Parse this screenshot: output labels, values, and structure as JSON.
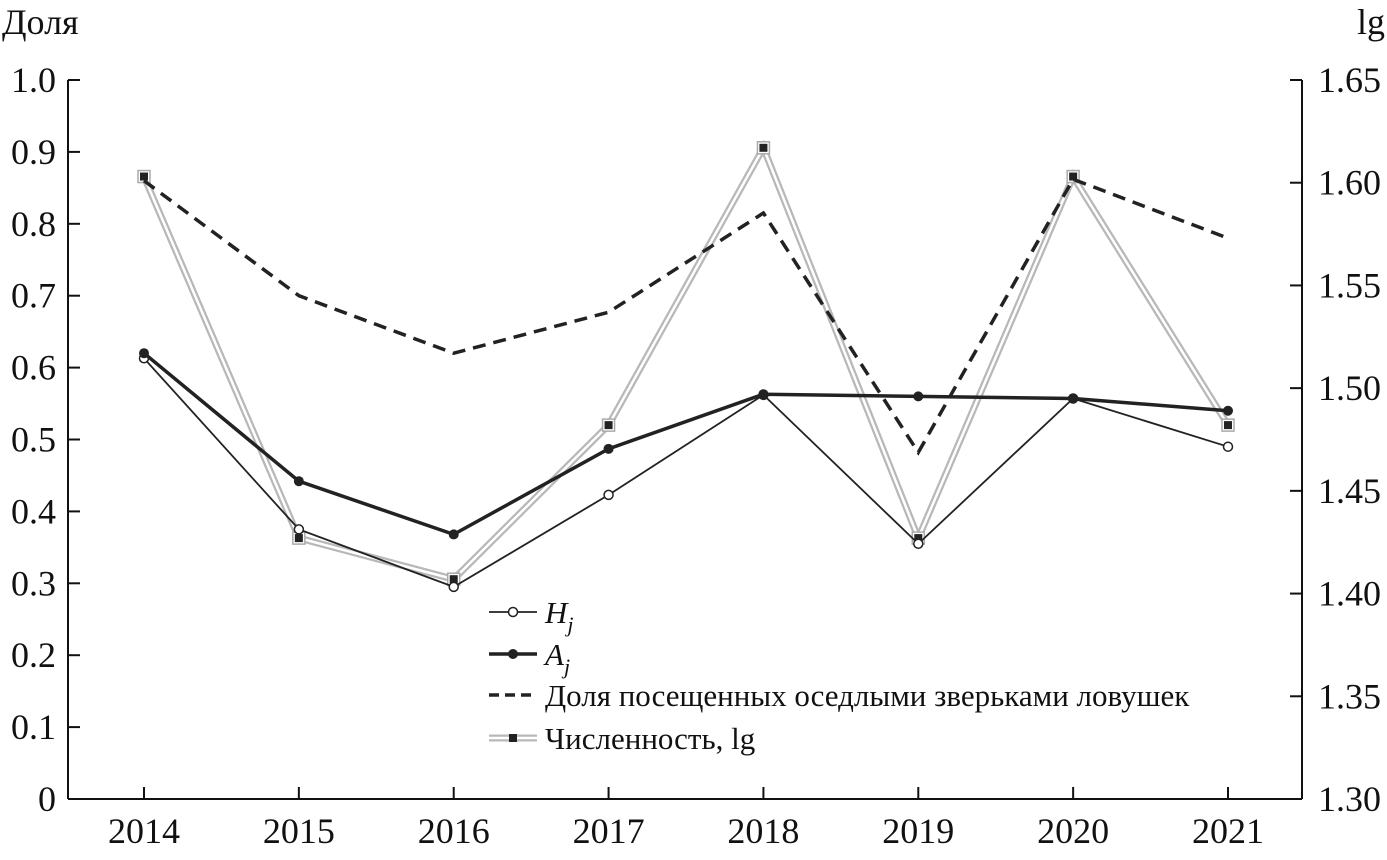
{
  "chart_data": {
    "type": "line",
    "left_axis_label": "Доля",
    "right_axis_label": "lg",
    "x": [
      "2014",
      "2015",
      "2016",
      "2017",
      "2018",
      "2019",
      "2020",
      "2021"
    ],
    "left_axis": {
      "ylim": [
        0,
        1.0
      ],
      "ticks": [
        "0",
        "0.1",
        "0.2",
        "0.3",
        "0.4",
        "0.5",
        "0.6",
        "0.7",
        "0.8",
        "0.9",
        "1.0"
      ]
    },
    "right_axis": {
      "ylim": [
        1.3,
        1.65
      ],
      "ticks": [
        "1.30",
        "1.35",
        "1.40",
        "1.45",
        "1.50",
        "1.55",
        "1.60",
        "1.65"
      ]
    },
    "series": [
      {
        "key": "hj",
        "name_main": "H",
        "name_sub": "j",
        "axis": "left",
        "style": "thin-open-circle",
        "color": "#222222",
        "values": [
          0.613,
          0.375,
          0.295,
          0.423,
          0.562,
          0.355,
          0.557,
          0.49
        ]
      },
      {
        "key": "aj",
        "name_main": "A",
        "name_sub": "j",
        "axis": "left",
        "style": "thick-filled-circle",
        "color": "#222222",
        "values": [
          0.62,
          0.442,
          0.368,
          0.487,
          0.563,
          0.56,
          0.557,
          0.54
        ]
      },
      {
        "key": "share",
        "name": "Доля посещенных оседлыми зверьками ловушек",
        "axis": "left",
        "style": "dashed",
        "color": "#222222",
        "values": [
          0.86,
          0.7,
          0.62,
          0.677,
          0.815,
          0.482,
          0.862,
          0.78
        ]
      },
      {
        "key": "abundance",
        "name": "Численность, lg",
        "axis": "right",
        "style": "double-gray-square",
        "color": "#b8b8b8",
        "values": [
          1.603,
          1.427,
          1.407,
          1.482,
          1.617,
          1.427,
          1.603,
          1.482
        ]
      }
    ],
    "grid": false,
    "legend_position": "bottom-center"
  }
}
